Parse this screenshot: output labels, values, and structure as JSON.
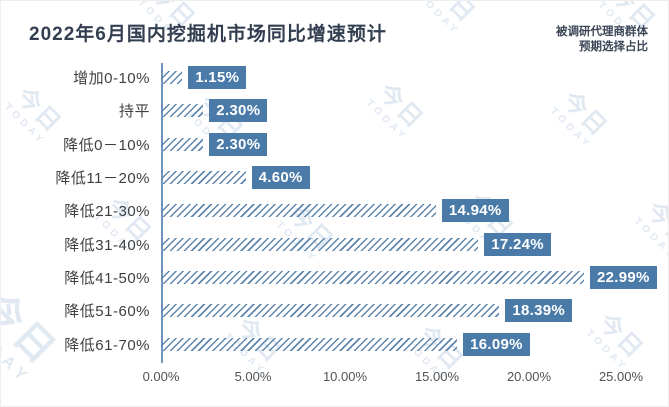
{
  "title": "2022年6月国内挖掘机市场同比增速预计",
  "annotation": {
    "line1": "被调研代理商群体",
    "line2": "预期选择占比"
  },
  "watermark": {
    "cn": "今日",
    "en": "TODAY"
  },
  "colors": {
    "accent": "#4a7ba8",
    "hatch": "#5f87ae",
    "axis_line": "#6f95bd",
    "title": "#333f50",
    "category_label": "#3d4043",
    "tick_label": "#4f5457",
    "watermark": "#c8d6e8"
  },
  "chart_data": {
    "type": "bar",
    "orientation": "horizontal",
    "title": "2022年6月国内挖掘机市场同比增速预计",
    "categories": [
      "增加0-10%",
      "持平",
      "降低0－10%",
      "降低11－20%",
      "降低21-30%",
      "降低31-40%",
      "降低41-50%",
      "降低51-60%",
      "降低61-70%"
    ],
    "values": [
      1.15,
      2.3,
      2.3,
      4.6,
      14.94,
      17.24,
      22.99,
      18.39,
      16.09
    ],
    "value_labels": [
      "1.15%",
      "2.30%",
      "2.30%",
      "4.60%",
      "14.94%",
      "17.24%",
      "22.99%",
      "18.39%",
      "16.09%"
    ],
    "xticks": [
      "0.00%",
      "5.00%",
      "10.00%",
      "15.00%",
      "20.00%",
      "25.00%"
    ],
    "xtick_values": [
      0,
      5,
      10,
      15,
      20,
      25
    ],
    "xlim": [
      0,
      25
    ],
    "xlabel": "",
    "ylabel": "",
    "grid": false,
    "legend": false
  }
}
